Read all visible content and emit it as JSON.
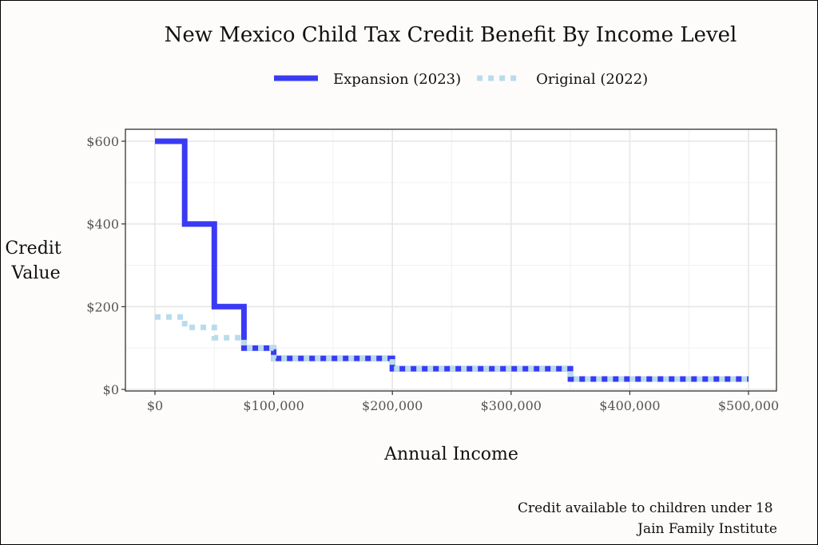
{
  "chart_data": {
    "type": "line",
    "title": "New Mexico Child Tax Credit Benefit By Income Level",
    "xlabel": "Annual Income",
    "ylabel": [
      "Credit",
      "Value"
    ],
    "xlim": [
      0,
      500000
    ],
    "ylim": [
      0,
      600
    ],
    "x_ticks": [
      0,
      100000,
      200000,
      300000,
      400000,
      500000
    ],
    "x_tick_labels": [
      "$0",
      "$100,000",
      "$200,000",
      "$300,000",
      "$400,000",
      "$500,000"
    ],
    "y_ticks": [
      0,
      200,
      400,
      600
    ],
    "y_tick_labels": [
      "$0",
      "$200",
      "$400",
      "$600"
    ],
    "grid": true,
    "legend_position": "top",
    "series": [
      {
        "name": "Expansion (2023)",
        "style": "solid",
        "color": "#3a3af5",
        "x": [
          0,
          25000,
          25000,
          50000,
          50000,
          75000,
          75000,
          100000,
          100000,
          200000,
          200000,
          350000,
          350000,
          500000
        ],
        "y": [
          600,
          600,
          400,
          400,
          200,
          200,
          100,
          100,
          75,
          75,
          50,
          50,
          25,
          25
        ]
      },
      {
        "name": "Original (2022)",
        "style": "dotted",
        "color": "#b9dcec",
        "x": [
          0,
          25000,
          25000,
          50000,
          50000,
          75000,
          75000,
          100000,
          100000,
          200000,
          200000,
          350000,
          350000,
          500000
        ],
        "y": [
          175,
          175,
          150,
          150,
          125,
          125,
          100,
          100,
          75,
          75,
          50,
          50,
          25,
          25
        ]
      }
    ],
    "caption": [
      "Credit available to children under 18",
      "Jain Family Institute"
    ]
  }
}
